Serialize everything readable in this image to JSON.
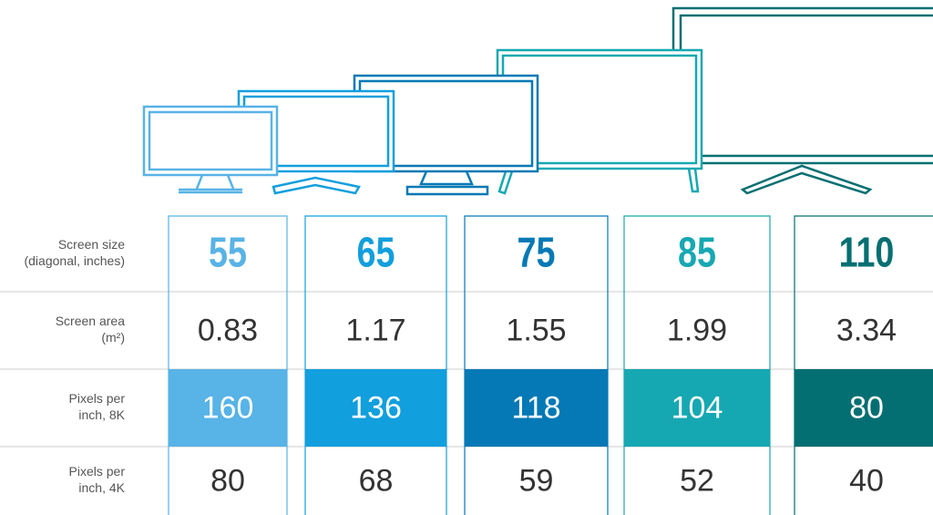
{
  "row_labels": [
    [
      "Screen size",
      "(diagonal, inches)"
    ],
    [
      "Screen area",
      "(m²)"
    ],
    [
      "Pixels per",
      "inch, 8K"
    ],
    [
      "Pixels per",
      "inch, 4K"
    ]
  ],
  "columns": [
    {
      "screen_size": 55,
      "screen_area": 0.83,
      "ppi_8k": 160,
      "ppi_4k": 80,
      "color": "#58b3e6"
    },
    {
      "screen_size": 65,
      "screen_area": 1.17,
      "ppi_8k": 136,
      "ppi_4k": 68,
      "color": "#129fdd"
    },
    {
      "screen_size": 75,
      "screen_area": 1.55,
      "ppi_8k": 118,
      "ppi_4k": 59,
      "color": "#0479b5"
    },
    {
      "screen_size": 85,
      "screen_area": 1.99,
      "ppi_8k": 104,
      "ppi_4k": 52,
      "color": "#16a8b2"
    },
    {
      "screen_size": 110,
      "screen_area": 3.34,
      "ppi_8k": 80,
      "ppi_4k": 40,
      "color": "#046f72"
    }
  ]
}
